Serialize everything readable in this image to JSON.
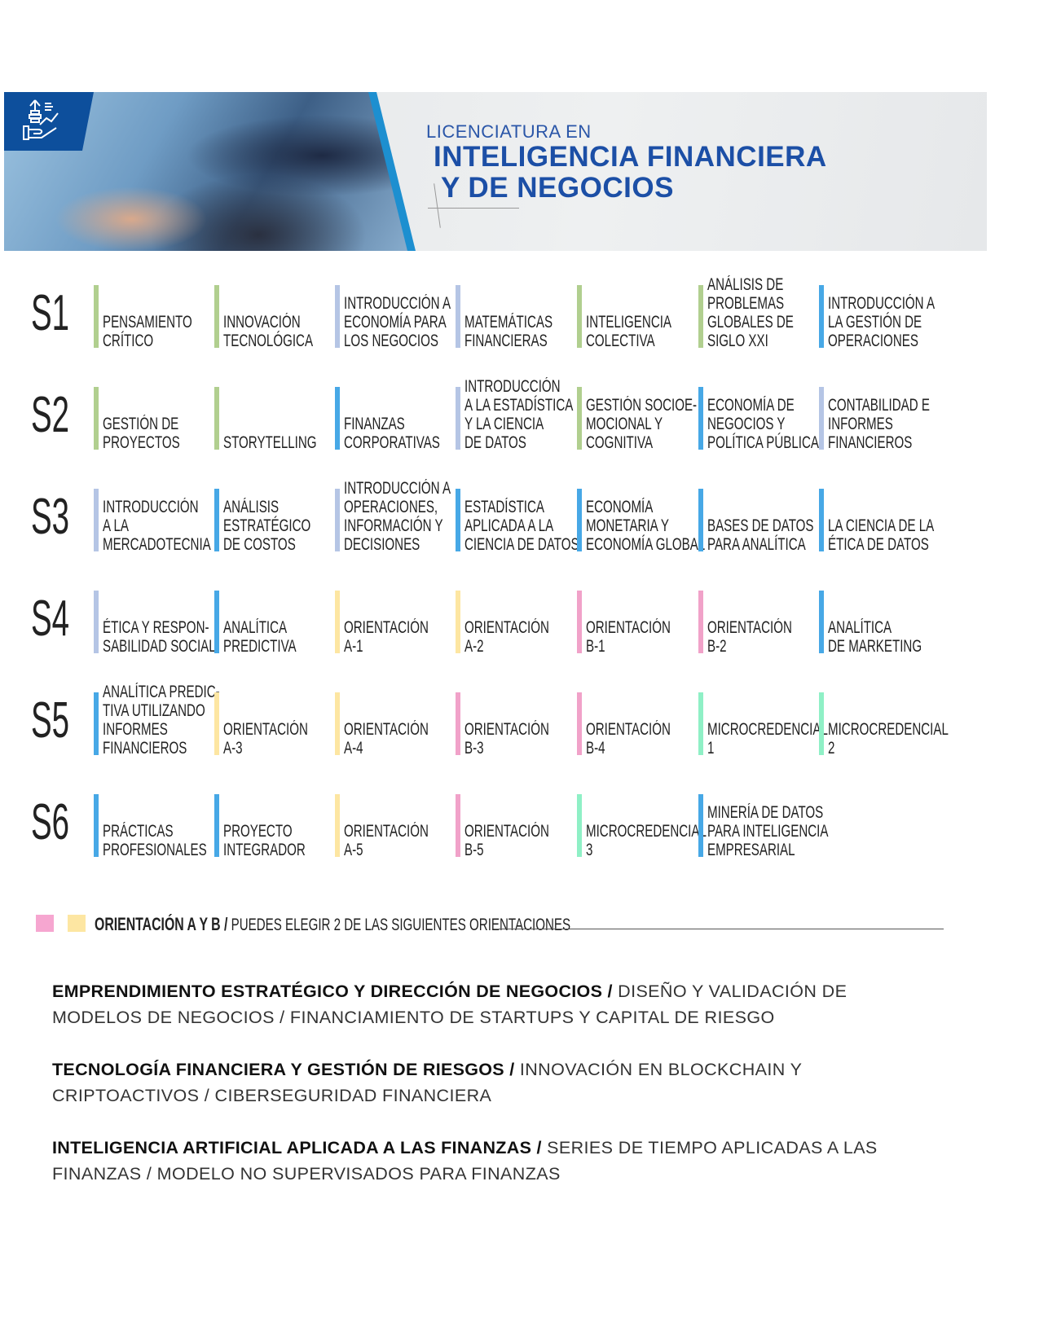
{
  "header": {
    "title_line1": "LICENCIATURA EN",
    "title_line2": "INTELIGENCIA FINANCIERA",
    "title_line3": "Y DE NEGOCIOS",
    "logo_icon": "hand-growth-icon"
  },
  "colors": {
    "green": "#b1cf8f",
    "lavender": "#b5c5e5",
    "blue": "#47a8e6",
    "yellow": "#fde6a2",
    "pink": "#f1a2c9",
    "mint": "#8ff0c6",
    "title_blue": "#1c4fa6"
  },
  "semesters": [
    {
      "label": "S1",
      "courses": [
        {
          "name": "PENSAMIENTO\nCRÍTICO",
          "color": "green"
        },
        {
          "name": "INNOVACIÓN\nTECNOLÓGICA",
          "color": "green"
        },
        {
          "name": "INTRODUCCIÓN A\nECONOMÍA PARA\nLOS NEGOCIOS",
          "color": "lavender"
        },
        {
          "name": "MATEMÁTICAS\nFINANCIERAS",
          "color": "lavender"
        },
        {
          "name": "INTELIGENCIA\nCOLECTIVA",
          "color": "green"
        },
        {
          "name": "ANÁLISIS DE\nPROBLEMAS\nGLOBALES DE\nSIGLO XXI",
          "color": "green"
        },
        {
          "name": "INTRODUCCIÓN A\nLA GESTIÓN DE\nOPERACIONES",
          "color": "blue"
        }
      ]
    },
    {
      "label": "S2",
      "courses": [
        {
          "name": "GESTIÓN DE\nPROYECTOS",
          "color": "green"
        },
        {
          "name": "STORYTELLING",
          "color": "green"
        },
        {
          "name": "FINANZAS\nCORPORATIVAS",
          "color": "blue"
        },
        {
          "name": "INTRODUCCIÓN\nA LA ESTADÍSTICA\nY LA CIENCIA\nDE DATOS",
          "color": "lavender"
        },
        {
          "name": "GESTIÓN SOCIOE-\nMOCIONAL Y\nCOGNITIVA",
          "color": "green"
        },
        {
          "name": "ECONOMÍA DE\nNEGOCIOS Y\nPOLÍTICA PÚBLICA",
          "color": "blue"
        },
        {
          "name": "CONTABILIDAD E\nINFORMES\nFINANCIEROS",
          "color": "lavender"
        }
      ]
    },
    {
      "label": "S3",
      "courses": [
        {
          "name": "INTRODUCCIÓN\nA LA\nMERCADOTECNIA",
          "color": "lavender"
        },
        {
          "name": "ANÁLISIS\nESTRATÉGICO\nDE COSTOS",
          "color": "blue"
        },
        {
          "name": "INTRODUCCIÓN A\nOPERACIONES,\nINFORMACIÓN Y\nDECISIONES",
          "color": "lavender"
        },
        {
          "name": "ESTADÍSTICA\nAPLICADA A LA\nCIENCIA DE DATOS",
          "color": "blue"
        },
        {
          "name": "ECONOMÍA\nMONETARIA Y\nECONOMÍA GLOBAL",
          "color": "blue"
        },
        {
          "name": "BASES DE DATOS\nPARA ANALÍTICA",
          "color": "blue"
        },
        {
          "name": "LA CIENCIA DE LA\nÉTICA DE DATOS",
          "color": "blue"
        }
      ]
    },
    {
      "label": "S4",
      "courses": [
        {
          "name": "ÉTICA Y RESPON-\nSABILIDAD SOCIAL",
          "color": "lavender"
        },
        {
          "name": "ANALÍTICA\nPREDICTIVA",
          "color": "blue"
        },
        {
          "name": "ORIENTACIÓN\nA-1",
          "color": "yellow"
        },
        {
          "name": "ORIENTACIÓN\nA-2",
          "color": "yellow"
        },
        {
          "name": "ORIENTACIÓN\nB-1",
          "color": "pink"
        },
        {
          "name": "ORIENTACIÓN\nB-2",
          "color": "pink"
        },
        {
          "name": "ANALÍTICA\nDE MARKETING",
          "color": "blue"
        }
      ]
    },
    {
      "label": "S5",
      "courses": [
        {
          "name": "ANALÍTICA PREDIC-\nTIVA UTILIZANDO\nINFORMES\nFINANCIEROS",
          "color": "blue"
        },
        {
          "name": "ORIENTACIÓN\nA-3",
          "color": "yellow"
        },
        {
          "name": "ORIENTACIÓN\nA-4",
          "color": "yellow"
        },
        {
          "name": "ORIENTACIÓN\nB-3",
          "color": "pink"
        },
        {
          "name": "ORIENTACIÓN\nB-4",
          "color": "pink"
        },
        {
          "name": "MICROCREDENCIAL\n1",
          "color": "mint"
        },
        {
          "name": "MICROCREDENCIAL\n2",
          "color": "mint"
        }
      ]
    },
    {
      "label": "S6",
      "courses": [
        {
          "name": "PRÁCTICAS\nPROFESIONALES",
          "color": "blue"
        },
        {
          "name": "PROYECTO\nINTEGRADOR",
          "color": "blue"
        },
        {
          "name": "ORIENTACIÓN\nA-5",
          "color": "yellow"
        },
        {
          "name": "ORIENTACIÓN\nB-5",
          "color": "pink"
        },
        {
          "name": "MICROCREDENCIAL\n3",
          "color": "mint"
        },
        {
          "name": "MINERÍA DE DATOS\nPARA INTELIGENCIA\nEMPRESARIAL",
          "color": "blue"
        }
      ]
    }
  ],
  "legend": {
    "title": "ORIENTACIÓN A Y B /",
    "text": "PUEDES ELEGIR 2 DE LAS SIGUIENTES ORIENTACIONES"
  },
  "orientations": [
    {
      "title": "EMPRENDIMIENTO ESTRATÉGICO Y DIRECCIÓN DE NEGOCIOS /",
      "detail": "DISEÑO Y VALIDACIÓN DE MODELOS DE NEGOCIOS / FINANCIAMIENTO DE STARTUPS Y CAPITAL DE RIESGO"
    },
    {
      "title": "TECNOLOGÍA FINANCIERA Y GESTIÓN DE RIESGOS /",
      "detail": "INNOVACIÓN EN BLOCKCHAIN Y CRIPTOACTIVOS / CIBERSEGURIDAD FINANCIERA"
    },
    {
      "title": "INTELIGENCIA ARTIFICIAL APLICADA A LAS FINANZAS /",
      "detail": "SERIES DE TIEMPO APLICADAS A LAS FINANZAS / MODELO NO SUPERVISADOS PARA FINANZAS"
    }
  ]
}
